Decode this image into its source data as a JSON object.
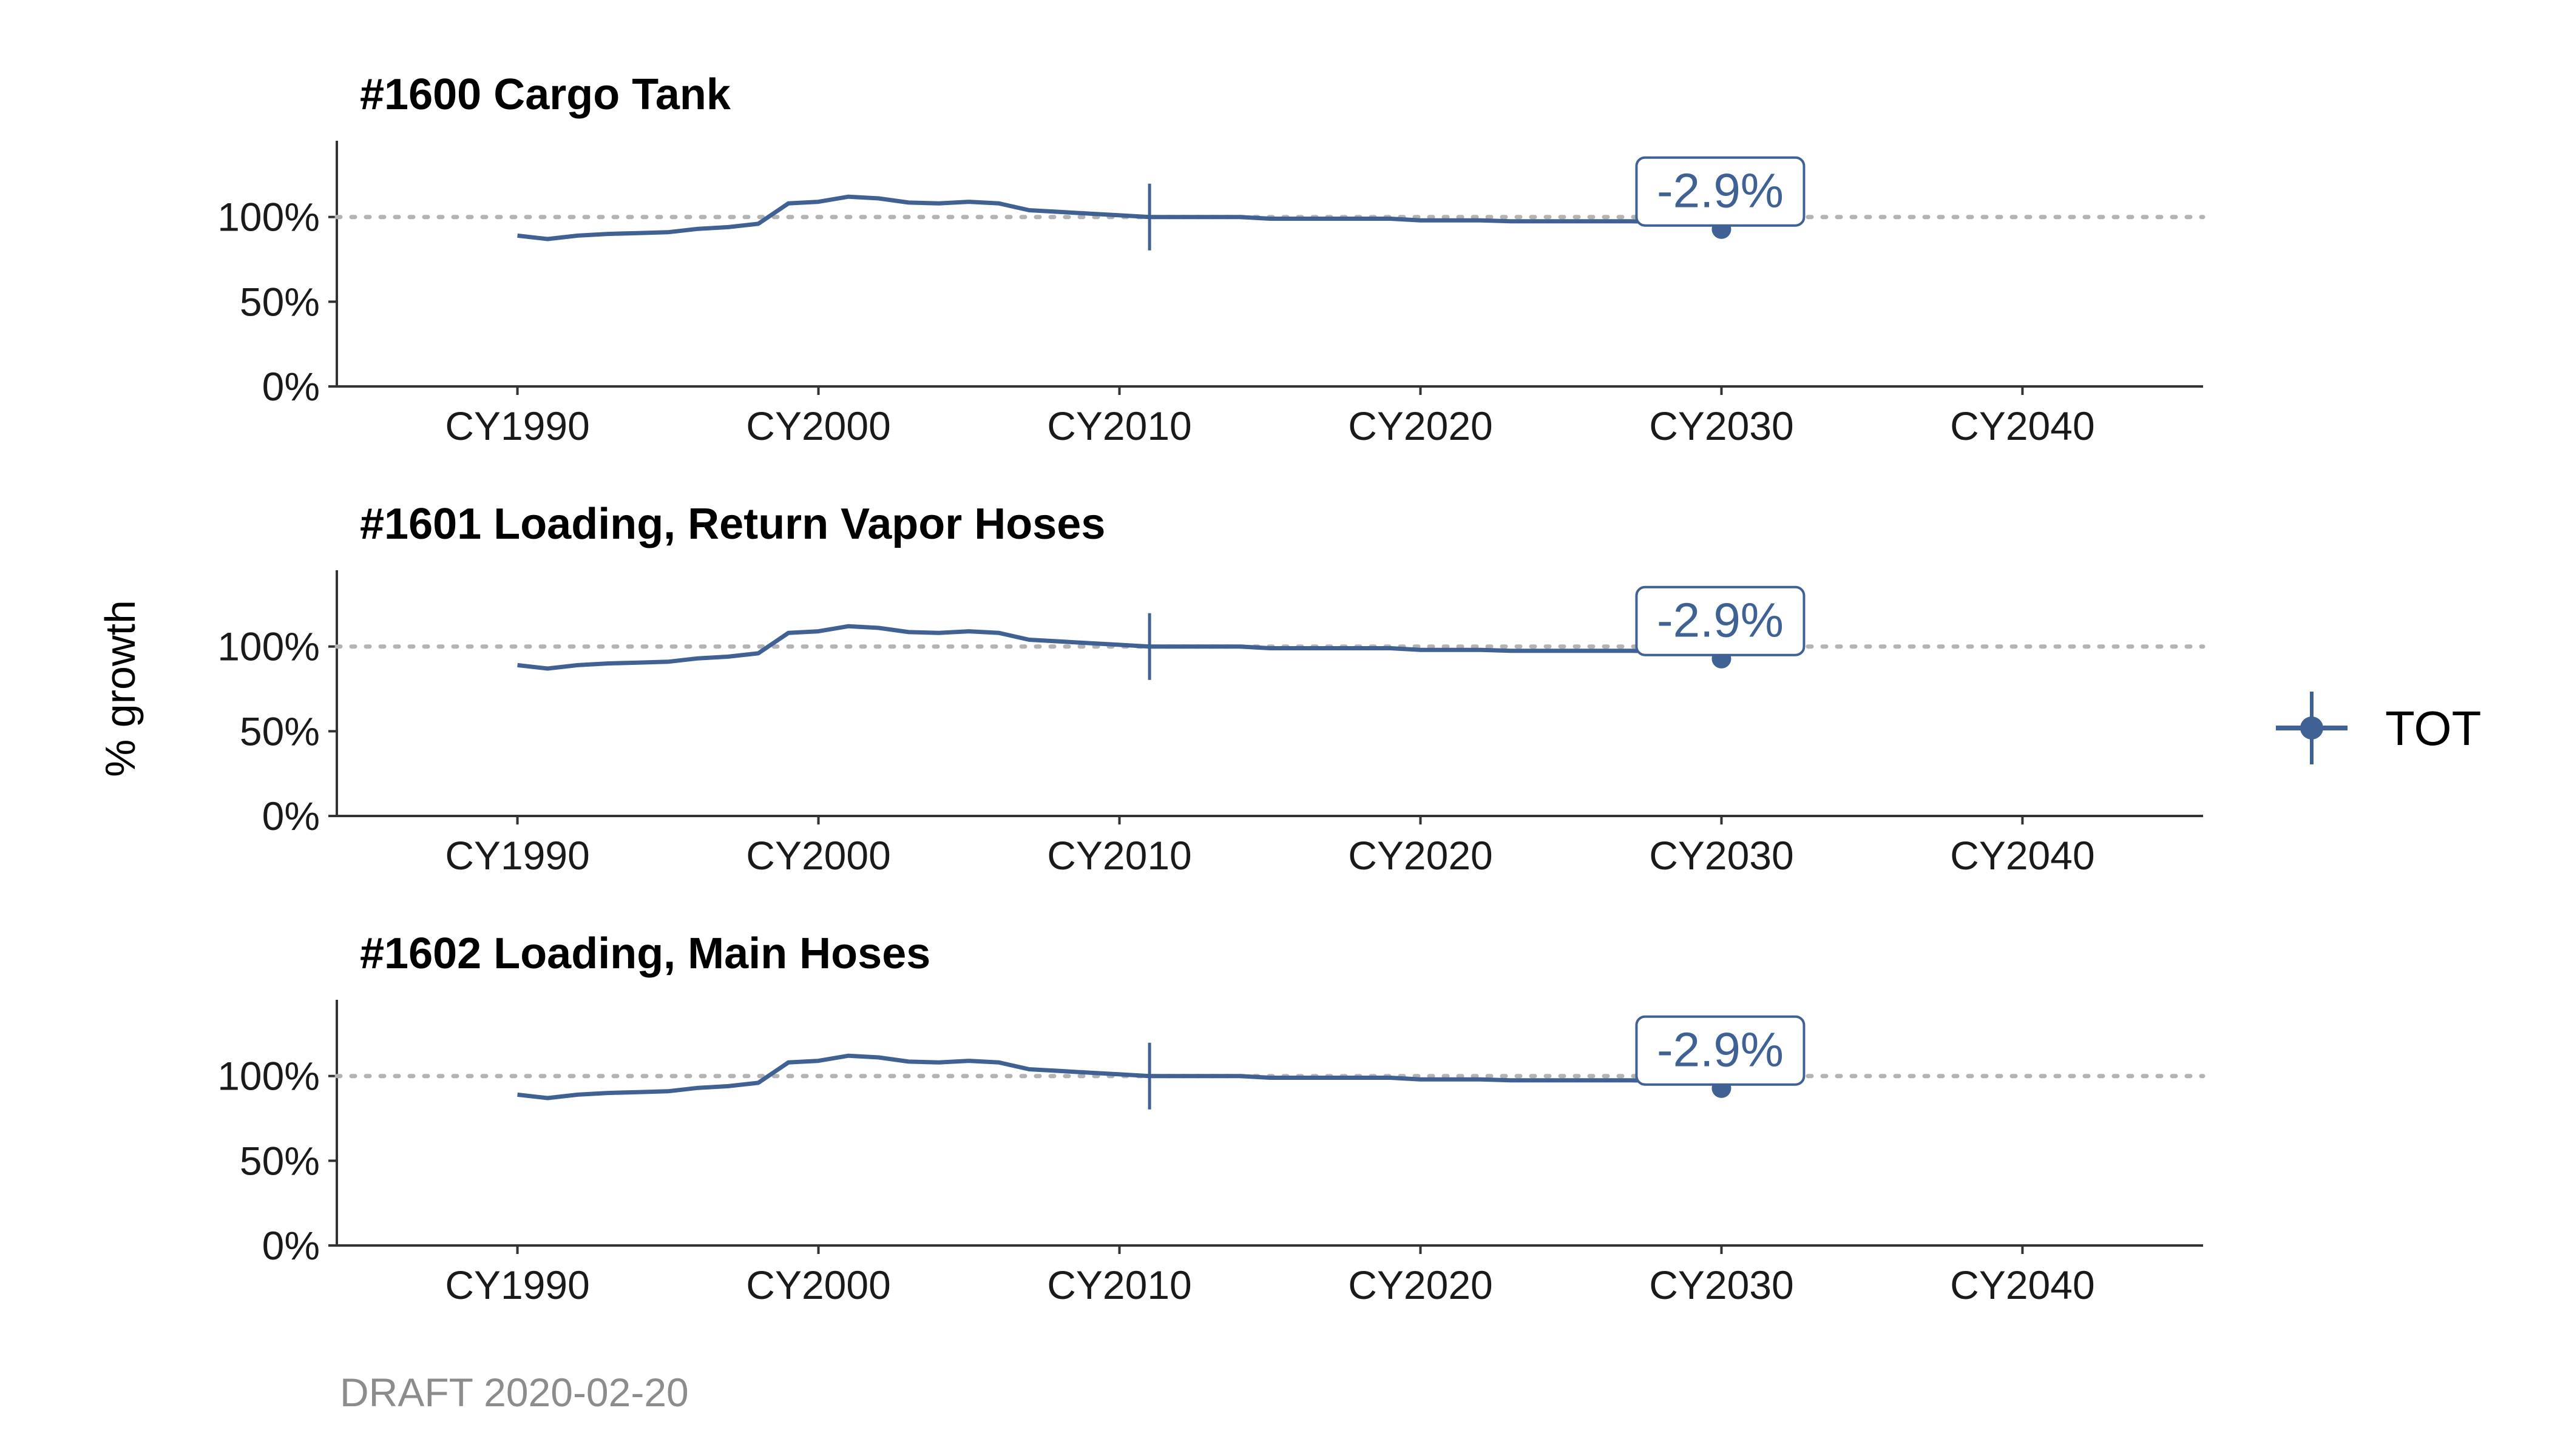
{
  "chart_data": {
    "type": "line",
    "ylabel": "% growth",
    "xlabel": "",
    "x_ticks": [
      "CY1990",
      "CY2000",
      "CY2010",
      "CY2020",
      "CY2030",
      "CY2040"
    ],
    "x_tick_years": [
      1990,
      2000,
      2010,
      2020,
      2030,
      2040
    ],
    "xlim": [
      1984,
      2046
    ],
    "y_ticks": [
      "0%",
      "50%",
      "100%"
    ],
    "y_tick_values": [
      0,
      0.5,
      1.0
    ],
    "ylim": [
      0,
      1.45
    ],
    "reference_line": 1.0,
    "base_year": 2011,
    "target_year": 2030,
    "legend": {
      "position": "right",
      "entries": [
        "TOT"
      ]
    },
    "colors": {
      "series": "#3f6193",
      "reference": "#b3b3b3",
      "axis": "#333333"
    },
    "caption": "DRAFT 2020-02-20",
    "panels": [
      {
        "title": "#1600 Cargo Tank",
        "annotation": "-2.9%",
        "series": [
          {
            "name": "TOT",
            "x": [
              1990,
              1991,
              1992,
              1993,
              1994,
              1995,
              1996,
              1997,
              1998,
              1999,
              2000,
              2001,
              2002,
              2003,
              2004,
              2005,
              2006,
              2007,
              2008,
              2009,
              2010,
              2011,
              2012,
              2013,
              2014,
              2015,
              2016,
              2017,
              2018,
              2019,
              2020,
              2021,
              2022,
              2023,
              2024,
              2025,
              2026,
              2027,
              2028,
              2029,
              2030
            ],
            "y": [
              0.89,
              0.87,
              0.89,
              0.9,
              0.905,
              0.91,
              0.93,
              0.94,
              0.96,
              1.08,
              1.09,
              1.12,
              1.11,
              1.085,
              1.08,
              1.09,
              1.08,
              1.04,
              1.03,
              1.02,
              1.01,
              1.0,
              1.0,
              1.0,
              1.0,
              0.99,
              0.99,
              0.99,
              0.99,
              0.99,
              0.98,
              0.98,
              0.98,
              0.975,
              0.975,
              0.975,
              0.975,
              0.975,
              0.971,
              0.971,
              0.971
            ]
          }
        ]
      },
      {
        "title": "#1601 Loading, Return Vapor Hoses",
        "annotation": "-2.9%",
        "series": [
          {
            "name": "TOT",
            "x": [
              1990,
              1991,
              1992,
              1993,
              1994,
              1995,
              1996,
              1997,
              1998,
              1999,
              2000,
              2001,
              2002,
              2003,
              2004,
              2005,
              2006,
              2007,
              2008,
              2009,
              2010,
              2011,
              2012,
              2013,
              2014,
              2015,
              2016,
              2017,
              2018,
              2019,
              2020,
              2021,
              2022,
              2023,
              2024,
              2025,
              2026,
              2027,
              2028,
              2029,
              2030
            ],
            "y": [
              0.89,
              0.87,
              0.89,
              0.9,
              0.905,
              0.91,
              0.93,
              0.94,
              0.96,
              1.08,
              1.09,
              1.12,
              1.11,
              1.085,
              1.08,
              1.09,
              1.08,
              1.04,
              1.03,
              1.02,
              1.01,
              1.0,
              1.0,
              1.0,
              1.0,
              0.99,
              0.99,
              0.99,
              0.99,
              0.99,
              0.98,
              0.98,
              0.98,
              0.975,
              0.975,
              0.975,
              0.975,
              0.975,
              0.971,
              0.971,
              0.971
            ]
          }
        ]
      },
      {
        "title": "#1602 Loading, Main Hoses",
        "annotation": "-2.9%",
        "series": [
          {
            "name": "TOT",
            "x": [
              1990,
              1991,
              1992,
              1993,
              1994,
              1995,
              1996,
              1997,
              1998,
              1999,
              2000,
              2001,
              2002,
              2003,
              2004,
              2005,
              2006,
              2007,
              2008,
              2009,
              2010,
              2011,
              2012,
              2013,
              2014,
              2015,
              2016,
              2017,
              2018,
              2019,
              2020,
              2021,
              2022,
              2023,
              2024,
              2025,
              2026,
              2027,
              2028,
              2029,
              2030
            ],
            "y": [
              0.89,
              0.87,
              0.89,
              0.9,
              0.905,
              0.91,
              0.93,
              0.94,
              0.96,
              1.08,
              1.09,
              1.12,
              1.11,
              1.085,
              1.08,
              1.09,
              1.08,
              1.04,
              1.03,
              1.02,
              1.01,
              1.0,
              1.0,
              1.0,
              1.0,
              0.99,
              0.99,
              0.99,
              0.99,
              0.99,
              0.98,
              0.98,
              0.98,
              0.975,
              0.975,
              0.975,
              0.975,
              0.975,
              0.971,
              0.971,
              0.971
            ]
          }
        ]
      }
    ]
  }
}
